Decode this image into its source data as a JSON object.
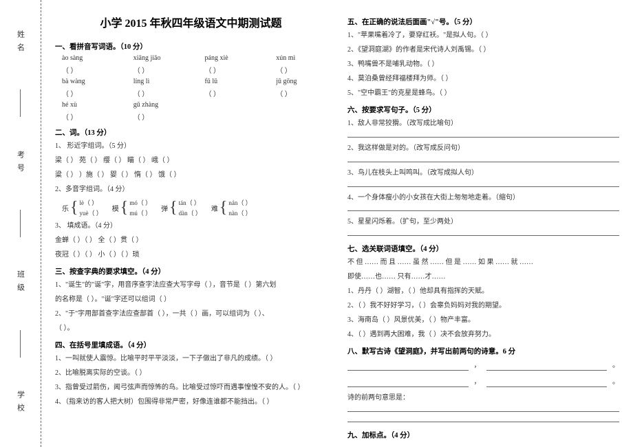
{
  "binding": {
    "labels": [
      "姓名",
      "考号",
      "班级",
      "学校"
    ]
  },
  "title": "小学 2015 年秋四年级语文中期测试题",
  "left": {
    "s1": {
      "h": "一、看拼音写词语。（10 分）",
      "row1": [
        "ào  sàng",
        "xiāng  jiāo",
        "páng  xiè",
        "xún  mì"
      ],
      "row2": [
        "bà  wàng",
        "líng   lì",
        "fǔ   lǔ",
        "jū  gōng"
      ],
      "row3": [
        "hé   xù",
        "gǔ  zhàng",
        "",
        ""
      ]
    },
    "s2": {
      "h": "二、词。（13 分）",
      "sub1": "1、 形近字组词。（5 分）",
      "pairs": [
        "梁（        ）   苑（        ）   缨（        ）  瞄（        ）   峨（        ）",
        "粱（        ）   ）施（        ）   婴（        ）  惰（        ）   饿（        ）"
      ],
      "sub2": "2、多音字组词。（4 分）",
      "multi": {
        "items": [
          {
            "c": "乐",
            "a": "lè（        ）",
            "b": "yuè（        ）"
          },
          {
            "c": "模",
            "a": "mó（        ）",
            "b": "mú（        ）"
          },
          {
            "c": "弹",
            "a": "tán（        ）",
            "b": "dàn（        ）"
          },
          {
            "c": "难",
            "a": "nán（        ）",
            "b": "nàn（        ）"
          }
        ]
      },
      "sub3": "3、 填成语。（4 分）",
      "fill1": "金蝉（        ）（        ）            全（        ）贯（        ）",
      "fill2": "夜冠（        ）（        ）            小（        ）（        ）琐"
    },
    "s3": {
      "h": "三、按查字典的要求填空。（4 分）",
      "l1": "1、\"诞生\"的\"诞\"字，用音序查字法应查大写字母（        ），音节是（        ）第六划",
      "l2": "的名称是（        ）。\"诞\"字还可以组词（                                ）",
      "l3": "2、\"于\"字用部首查字法应查部首（        ），一共（        ）画，可以组词为（        ）、",
      "l4": "（        ）。"
    },
    "s4": {
      "h": "四、在括号里填成语。（4 分）",
      "l1": "1、一叫就使人震惊。比喻平时平平淡淡，一下子做出了非凡的成绩。（                ）",
      "l2": "2、比喻脱离实际的空谈。（                ）",
      "l3": "3、指曾受过箭伤，闻弓弦声而惊怖的鸟。比喻受过惊吓而遇事惶惶不安的人。（                ）",
      "l4": "4、（指来访的客人把大树）包围得非常严密，好像连谁都不能挡出。（                ）"
    }
  },
  "right": {
    "s5": {
      "h": "五、在正确的说法后面画\"√\"号。（5 分）",
      "l1": "1、\"苹果嘴着冷了，要穿红袄。\"是拟人句。（        ）",
      "l2": "2、《望洞庭湖》的作者是宋代诗人刘禹锡。（        ）",
      "l3": "3、鸭嘴兽不是哺乳动物。（        ）",
      "l4": "4、莫泊桑曾经拜福楼拜为师。（        ）",
      "l5": "5、\"空中霸王\"的克星是蜂鸟。（        ）"
    },
    "s6": {
      "h": "六、按要求写句子。（5 分）",
      "l1": "1、敌人非常狡猾。（改写成比喻句）",
      "l2": "2、我这样做是对的。（改写成反问句）",
      "l3": "3、鸟儿在枝头上叫鸣叫。（改写成拟人句）",
      "l4": "4、一个身体瘦小的小女孩在大街上匆匆地走着。（缩句）",
      "l5": "5、星星闪烁着。（扩句，至少两处）"
    },
    "s7": {
      "h": "七、选关联词语填空。（4 分）",
      "opts1": "不 但 …… 而 且 ……      虽 然 …… 但 是 ……      如 果 …… 就 ……",
      "opts2": "即使……也……       只有……才……",
      "l1": "1、丹丹（        ）湖智，（        ）他却具有指挥的天赋。",
      "l2": "2、（        ）我不好好学习，（        ）会辜负妈妈对我的期望。",
      "l3": "3、海南岛（        ）风景优美，（        ）物产丰富。",
      "l4": "4、（        ）遇到再大困难，我（        ）决不会放弃努力。"
    },
    "s8": {
      "h": "八、默写古诗《望洞庭》，并写出前两句的诗意。6 分",
      "poem_prefix": "诗的前两句意思是："
    },
    "s9": {
      "h": "九、加标点。（4 分）"
    }
  }
}
